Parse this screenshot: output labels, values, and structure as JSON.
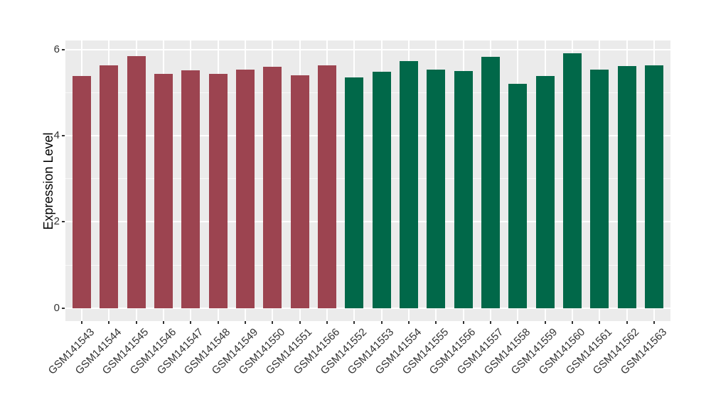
{
  "chart_data": {
    "type": "bar",
    "title": "",
    "xlabel": "",
    "ylabel": "Expression Level",
    "categories": [
      "GSM141543",
      "GSM141544",
      "GSM141545",
      "GSM141546",
      "GSM141547",
      "GSM141548",
      "GSM141549",
      "GSM141550",
      "GSM141551",
      "GSM141566",
      "GSM141552",
      "GSM141553",
      "GSM141554",
      "GSM141555",
      "GSM141556",
      "GSM141557",
      "GSM141558",
      "GSM141559",
      "GSM141560",
      "GSM141561",
      "GSM141562",
      "GSM141563"
    ],
    "values": [
      5.38,
      5.64,
      5.85,
      5.44,
      5.52,
      5.44,
      5.53,
      5.6,
      5.4,
      5.63,
      5.36,
      5.48,
      5.74,
      5.53,
      5.5,
      5.83,
      5.21,
      5.38,
      5.91,
      5.54,
      5.62,
      5.63
    ],
    "bar_groups": [
      0,
      0,
      0,
      0,
      0,
      0,
      0,
      0,
      0,
      0,
      1,
      1,
      1,
      1,
      1,
      1,
      1,
      1,
      1,
      1,
      1,
      1
    ],
    "group_colors": [
      "#9C4450",
      "#016849"
    ],
    "yticks": [
      0,
      2,
      4,
      6
    ],
    "yticks_minor": [
      1,
      3,
      5
    ],
    "ylim": [
      -0.3,
      6.21
    ],
    "grid": "on",
    "legend_position": "none",
    "panel_background": "#EBEBEB",
    "grid_color": "#FFFFFF",
    "axis_text_color": "#333333",
    "axis_title_color": "#000000"
  }
}
